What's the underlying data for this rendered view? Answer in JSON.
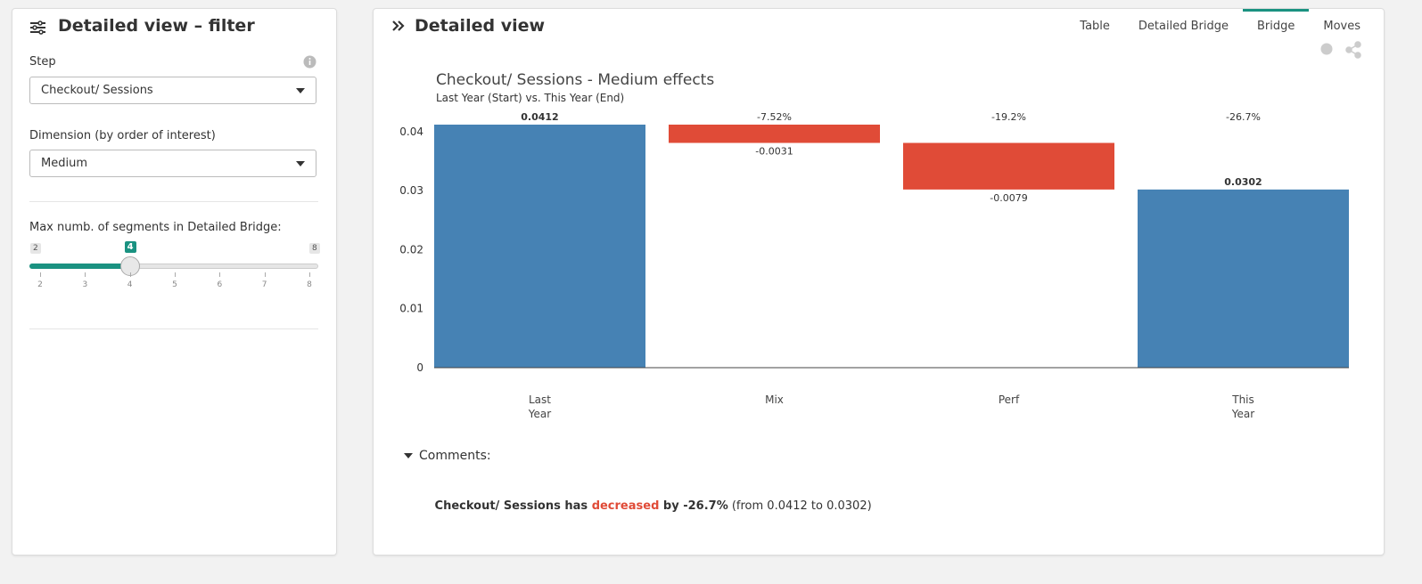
{
  "filter_panel": {
    "title": "Detailed view – filter",
    "step_label": "Step",
    "step_value": "Checkout/ Sessions",
    "dimension_label": "Dimension (by order of interest)",
    "dimension_value": "Medium",
    "slider_label": "Max numb. of segments in Detailed Bridge:",
    "slider_min": 2,
    "slider_max": 8,
    "slider_value": 4,
    "slider_ticks": [
      2,
      3,
      4,
      5,
      6,
      7,
      8
    ]
  },
  "main_panel": {
    "title": "Detailed view",
    "tabs": [
      "Table",
      "Detailed Bridge",
      "Bridge",
      "Moves"
    ],
    "active_tab": 2
  },
  "chart_data": {
    "type": "waterfall",
    "title": "Checkout/ Sessions - Medium effects",
    "subtitle": "Last Year (Start) vs. This Year (End)",
    "categories": [
      "Last Year",
      "Mix",
      "Perf",
      "This Year"
    ],
    "values": [
      0.0412,
      -0.0031,
      -0.0079,
      0.0302
    ],
    "measures": [
      "absolute",
      "relative",
      "relative",
      "total"
    ],
    "colors": [
      "#4682b4",
      "#e04b37",
      "#e04b37",
      "#4682b4"
    ],
    "change_labels": [
      null,
      "-7.52%",
      "-19.2%",
      "-26.7%"
    ],
    "ylim": [
      0,
      0.0415
    ],
    "yticks": [
      0,
      0.01,
      0.02,
      0.03,
      0.04
    ]
  },
  "comments": {
    "heading": "Comments:",
    "parts": [
      "Checkout/ Sessions has ",
      "decreased",
      " by -26.7%",
      " (from 0.0412 to 0.0302)"
    ]
  }
}
